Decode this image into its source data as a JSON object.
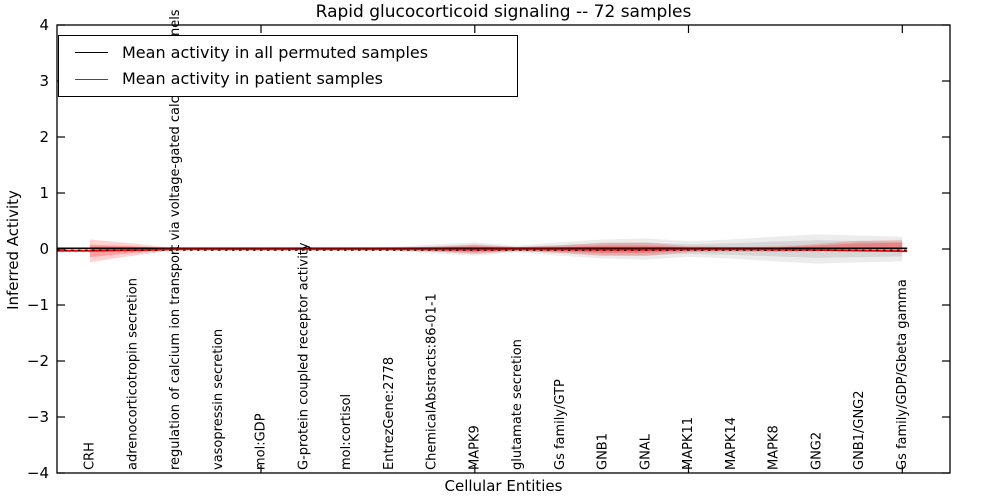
{
  "chart_data": {
    "type": "line",
    "title": "Rapid glucocorticoid signaling -- 72 samples",
    "xlabel": "Cellular Entities",
    "ylabel": "Inferred Activity",
    "ylim": [
      -4,
      4
    ],
    "yticks": [
      -4,
      -3,
      -2,
      -1,
      0,
      1,
      2,
      3,
      4
    ],
    "grid": false,
    "legend_position": "upper left",
    "categories": [
      "CRH",
      "adrenocorticotropin secretion",
      "regulation of calcium ion transport via voltage-gated calcium channels",
      "vasopressin secretion",
      "mol:GDP",
      "G-protein coupled receptor activity",
      "mol:cortisol",
      "EntrezGene:2778",
      "ChemicalAbstracts:86-01-1",
      "MAPK9",
      "glutamate secretion",
      "Gs family/GTP",
      "GNB1",
      "GNAL",
      "MAPK11",
      "MAPK14",
      "MAPK8",
      "GNG2",
      "GNB1/GNG2",
      "Gs family/GDP/Gbeta gamma"
    ],
    "x_axis_tick_indices": [
      4,
      9,
      14,
      19
    ],
    "series": [
      {
        "name": "Mean activity in all permuted samples",
        "color": "#000000",
        "style": "solid",
        "values": [
          0.012,
          0.012,
          0.012,
          0.012,
          0.012,
          0.012,
          0.012,
          0.012,
          0.012,
          0.012,
          0.012,
          0.012,
          0.012,
          0.012,
          0.012,
          0.012,
          0.012,
          0.012,
          0.012,
          0.012
        ]
      },
      {
        "name": "Mean activity in patient samples",
        "color": "#ff0000",
        "style": "solid",
        "values": [
          -0.032,
          -0.021,
          -0.007,
          -0.007,
          -0.007,
          -0.007,
          -0.007,
          -0.007,
          -0.009,
          -0.011,
          -0.007,
          -0.009,
          -0.013,
          -0.013,
          -0.009,
          -0.009,
          -0.013,
          -0.018,
          -0.029,
          -0.039
        ]
      }
    ],
    "reference_line": {
      "value": -0.022,
      "color": "#000000",
      "style": "dashed"
    },
    "bands": [
      {
        "name": "permuted samples spread",
        "color": "#8a8a8a",
        "opacity": 0.16,
        "inner_scale": 0.6,
        "upper": [
          0.05,
          0.04,
          0.02,
          0.02,
          0.02,
          0.02,
          0.02,
          0.03,
          0.08,
          0.12,
          0.06,
          0.12,
          0.17,
          0.19,
          0.14,
          0.17,
          0.22,
          0.26,
          0.24,
          0.22
        ],
        "lower": [
          -0.05,
          -0.04,
          -0.02,
          -0.02,
          -0.02,
          -0.02,
          -0.02,
          -0.03,
          -0.08,
          -0.12,
          -0.06,
          -0.12,
          -0.17,
          -0.19,
          -0.14,
          -0.17,
          -0.22,
          -0.26,
          -0.24,
          -0.22
        ]
      },
      {
        "name": "patient samples spread",
        "color": "#ff0000",
        "opacity": 0.18,
        "inner_scale": 0.55,
        "upper": [
          0.17,
          0.1,
          0.015,
          0.01,
          0.01,
          0.01,
          0.01,
          0.01,
          0.035,
          0.085,
          0.03,
          0.065,
          0.115,
          0.115,
          0.05,
          0.035,
          0.045,
          0.09,
          0.145,
          0.16
        ],
        "lower": [
          -0.235,
          -0.12,
          -0.02,
          -0.015,
          -0.015,
          -0.015,
          -0.015,
          -0.015,
          -0.04,
          -0.09,
          -0.035,
          -0.07,
          -0.125,
          -0.125,
          -0.055,
          -0.04,
          -0.05,
          -0.035,
          -0.04,
          -0.055
        ]
      }
    ]
  },
  "legend": {
    "entries": [
      {
        "label": "Mean activity in all permuted samples",
        "color": "#000000"
      },
      {
        "label": "Mean activity in patient samples",
        "color": "#ff0000"
      }
    ]
  }
}
